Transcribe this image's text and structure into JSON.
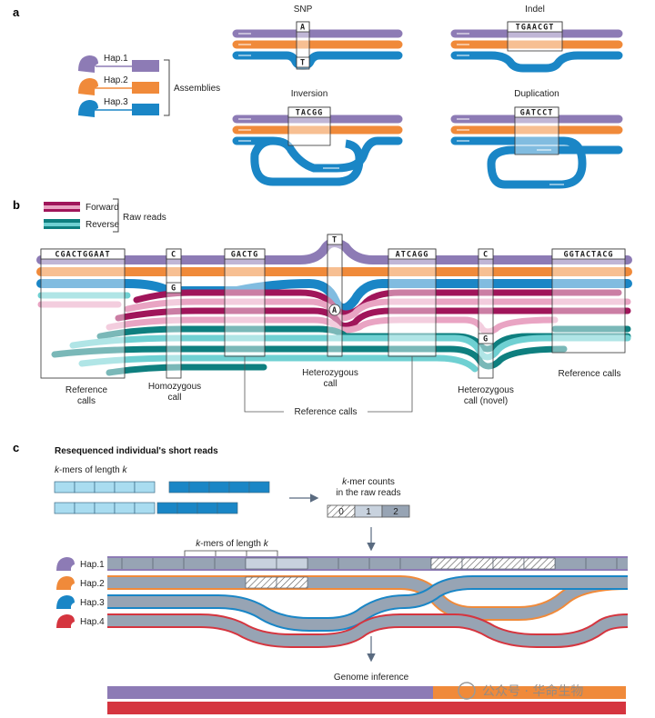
{
  "colors": {
    "hap1": "#8d7bb5",
    "hap2": "#f08a3a",
    "hap3": "#1a86c6",
    "hap4": "#d5353f",
    "forward_dark": "#a0155a",
    "forward_light": "#e9a4c3",
    "reverse_dark": "#0e7f7f",
    "reverse_light": "#6fd0d2",
    "kmer_grey": "#97a4b4",
    "kmer_light": "#c8d2de"
  },
  "panel_a": {
    "label": "a",
    "haplotypes": [
      "Hap.1",
      "Hap.2",
      "Hap.3"
    ],
    "assemblies_label": "Assemblies",
    "snp": {
      "title": "SNP",
      "top_base": "A",
      "bottom_base": "T"
    },
    "indel": {
      "title": "Indel",
      "seq": "TGAACGT"
    },
    "inversion": {
      "title": "Inversion",
      "seq": "TACGG"
    },
    "duplication": {
      "title": "Duplication",
      "seq": "GATCCT"
    }
  },
  "panel_b": {
    "label": "b",
    "legend": {
      "forward": "Forward",
      "reverse": "Reverse",
      "raw_reads": "Raw reads"
    },
    "seqs": {
      "s1": "CGACTGGAAT",
      "s2": "C",
      "s2b": "G",
      "s3": "GACTG",
      "s4": "T",
      "s4b": "A",
      "s5": "ATCAGG",
      "s6": "C",
      "s6b": "G",
      "s7": "GGTACTACG"
    },
    "calls": {
      "reference_left": "Reference calls",
      "homozygous": "Homozygous call",
      "heterozygous": "Heterozygous call",
      "heterozygous_novel": "Heterozygous call (novel)",
      "reference_right": "Reference calls",
      "reference_bottom": "Reference calls"
    }
  },
  "panel_c": {
    "label": "c",
    "title": "Resequenced individual's short reads",
    "kmers_label_italic": "k",
    "kmers_label_mid": "-mers of length ",
    "kmers_label_k": "k",
    "counts_label_k": "k",
    "counts_label_1": "-mer counts",
    "counts_label_2": "in the raw reads",
    "count_values": [
      "0",
      "1",
      "2"
    ],
    "kmers_bracket_k1": "k",
    "kmers_bracket_mid": "-mers of length ",
    "kmers_bracket_k2": "k",
    "haplotypes": [
      "Hap.1",
      "Hap.2",
      "Hap.3",
      "Hap.4"
    ],
    "genome_inference": "Genome inference"
  },
  "watermark": "公众号 · 华命生物"
}
